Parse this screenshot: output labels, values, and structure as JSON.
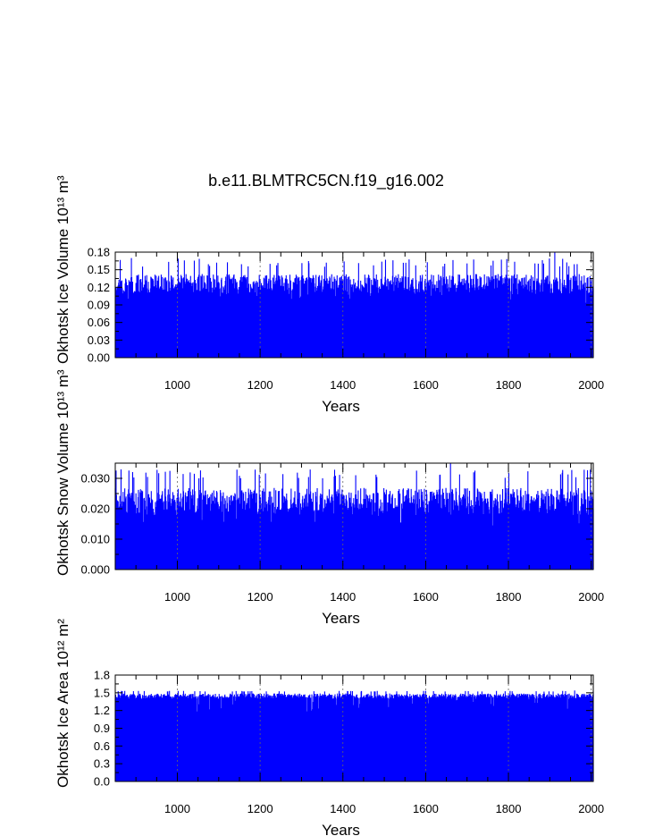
{
  "figure": {
    "title": "b.e11.BLMTRC5CN.f19_g16.002"
  },
  "chart_data": [
    {
      "type": "bar",
      "name": "ice-volume",
      "ylabel": "Okhotsk Ice Volume",
      "ylabel_unit": "10¹³ m³",
      "xlabel": "Years",
      "xlim": [
        850,
        2005
      ],
      "ylim": [
        0,
        0.18
      ],
      "x_ticks": [
        1000,
        1200,
        1400,
        1600,
        1800,
        2000
      ],
      "x_tick_labels": [
        "1000",
        "1200",
        "1400",
        "1600",
        "1800",
        "2000"
      ],
      "y_ticks": [
        0,
        0.03,
        0.06,
        0.09,
        0.12,
        0.15,
        0.18
      ],
      "y_tick_labels": [
        "0.00",
        "0.03",
        "0.06",
        "0.09",
        "0.12",
        "0.15",
        "0.18"
      ],
      "grid": "vertical dashed at x ticks",
      "color": "#0000ff",
      "series_summary": {
        "typical": 0.12,
        "low": 0.09,
        "high": 0.155,
        "peak": 0.18,
        "peak_year": 1912
      }
    },
    {
      "type": "bar",
      "name": "snow-volume",
      "ylabel": "Okhotsk Snow Volume",
      "ylabel_unit": "10¹³ m³",
      "xlabel": "Years",
      "xlim": [
        850,
        2005
      ],
      "ylim": [
        0,
        0.035
      ],
      "x_ticks": [
        1000,
        1200,
        1400,
        1600,
        1800,
        2000
      ],
      "x_tick_labels": [
        "1000",
        "1200",
        "1400",
        "1600",
        "1800",
        "2000"
      ],
      "y_ticks": [
        0,
        0.01,
        0.02,
        0.03
      ],
      "y_tick_labels": [
        "0.000",
        "0.010",
        "0.020",
        "0.030"
      ],
      "grid": "vertical dashed at x ticks",
      "color": "#0000ff",
      "series_summary": {
        "typical": 0.021,
        "low": 0.014,
        "high": 0.03,
        "peak": 0.035,
        "peak_year": 1660
      }
    },
    {
      "type": "bar",
      "name": "ice-area",
      "ylabel": "Okhotsk Ice Area",
      "ylabel_unit": "10¹² m²",
      "xlabel": "Years",
      "xlim": [
        850,
        2005
      ],
      "ylim": [
        0,
        1.8
      ],
      "x_ticks": [
        1000,
        1200,
        1400,
        1600,
        1800,
        2000
      ],
      "x_tick_labels": [
        "1000",
        "1200",
        "1400",
        "1600",
        "1800",
        "2000"
      ],
      "y_ticks": [
        0,
        0.3,
        0.6,
        0.9,
        1.2,
        1.5,
        1.8
      ],
      "y_tick_labels": [
        "0.0",
        "0.3",
        "0.6",
        "0.9",
        "1.2",
        "1.5",
        "1.8"
      ],
      "grid": "vertical dashed at x ticks",
      "color": "#0000ff",
      "series_summary": {
        "typical": 1.43,
        "low": 1.15,
        "high": 1.52,
        "peak": 1.54,
        "peak_year": 1960
      }
    }
  ]
}
